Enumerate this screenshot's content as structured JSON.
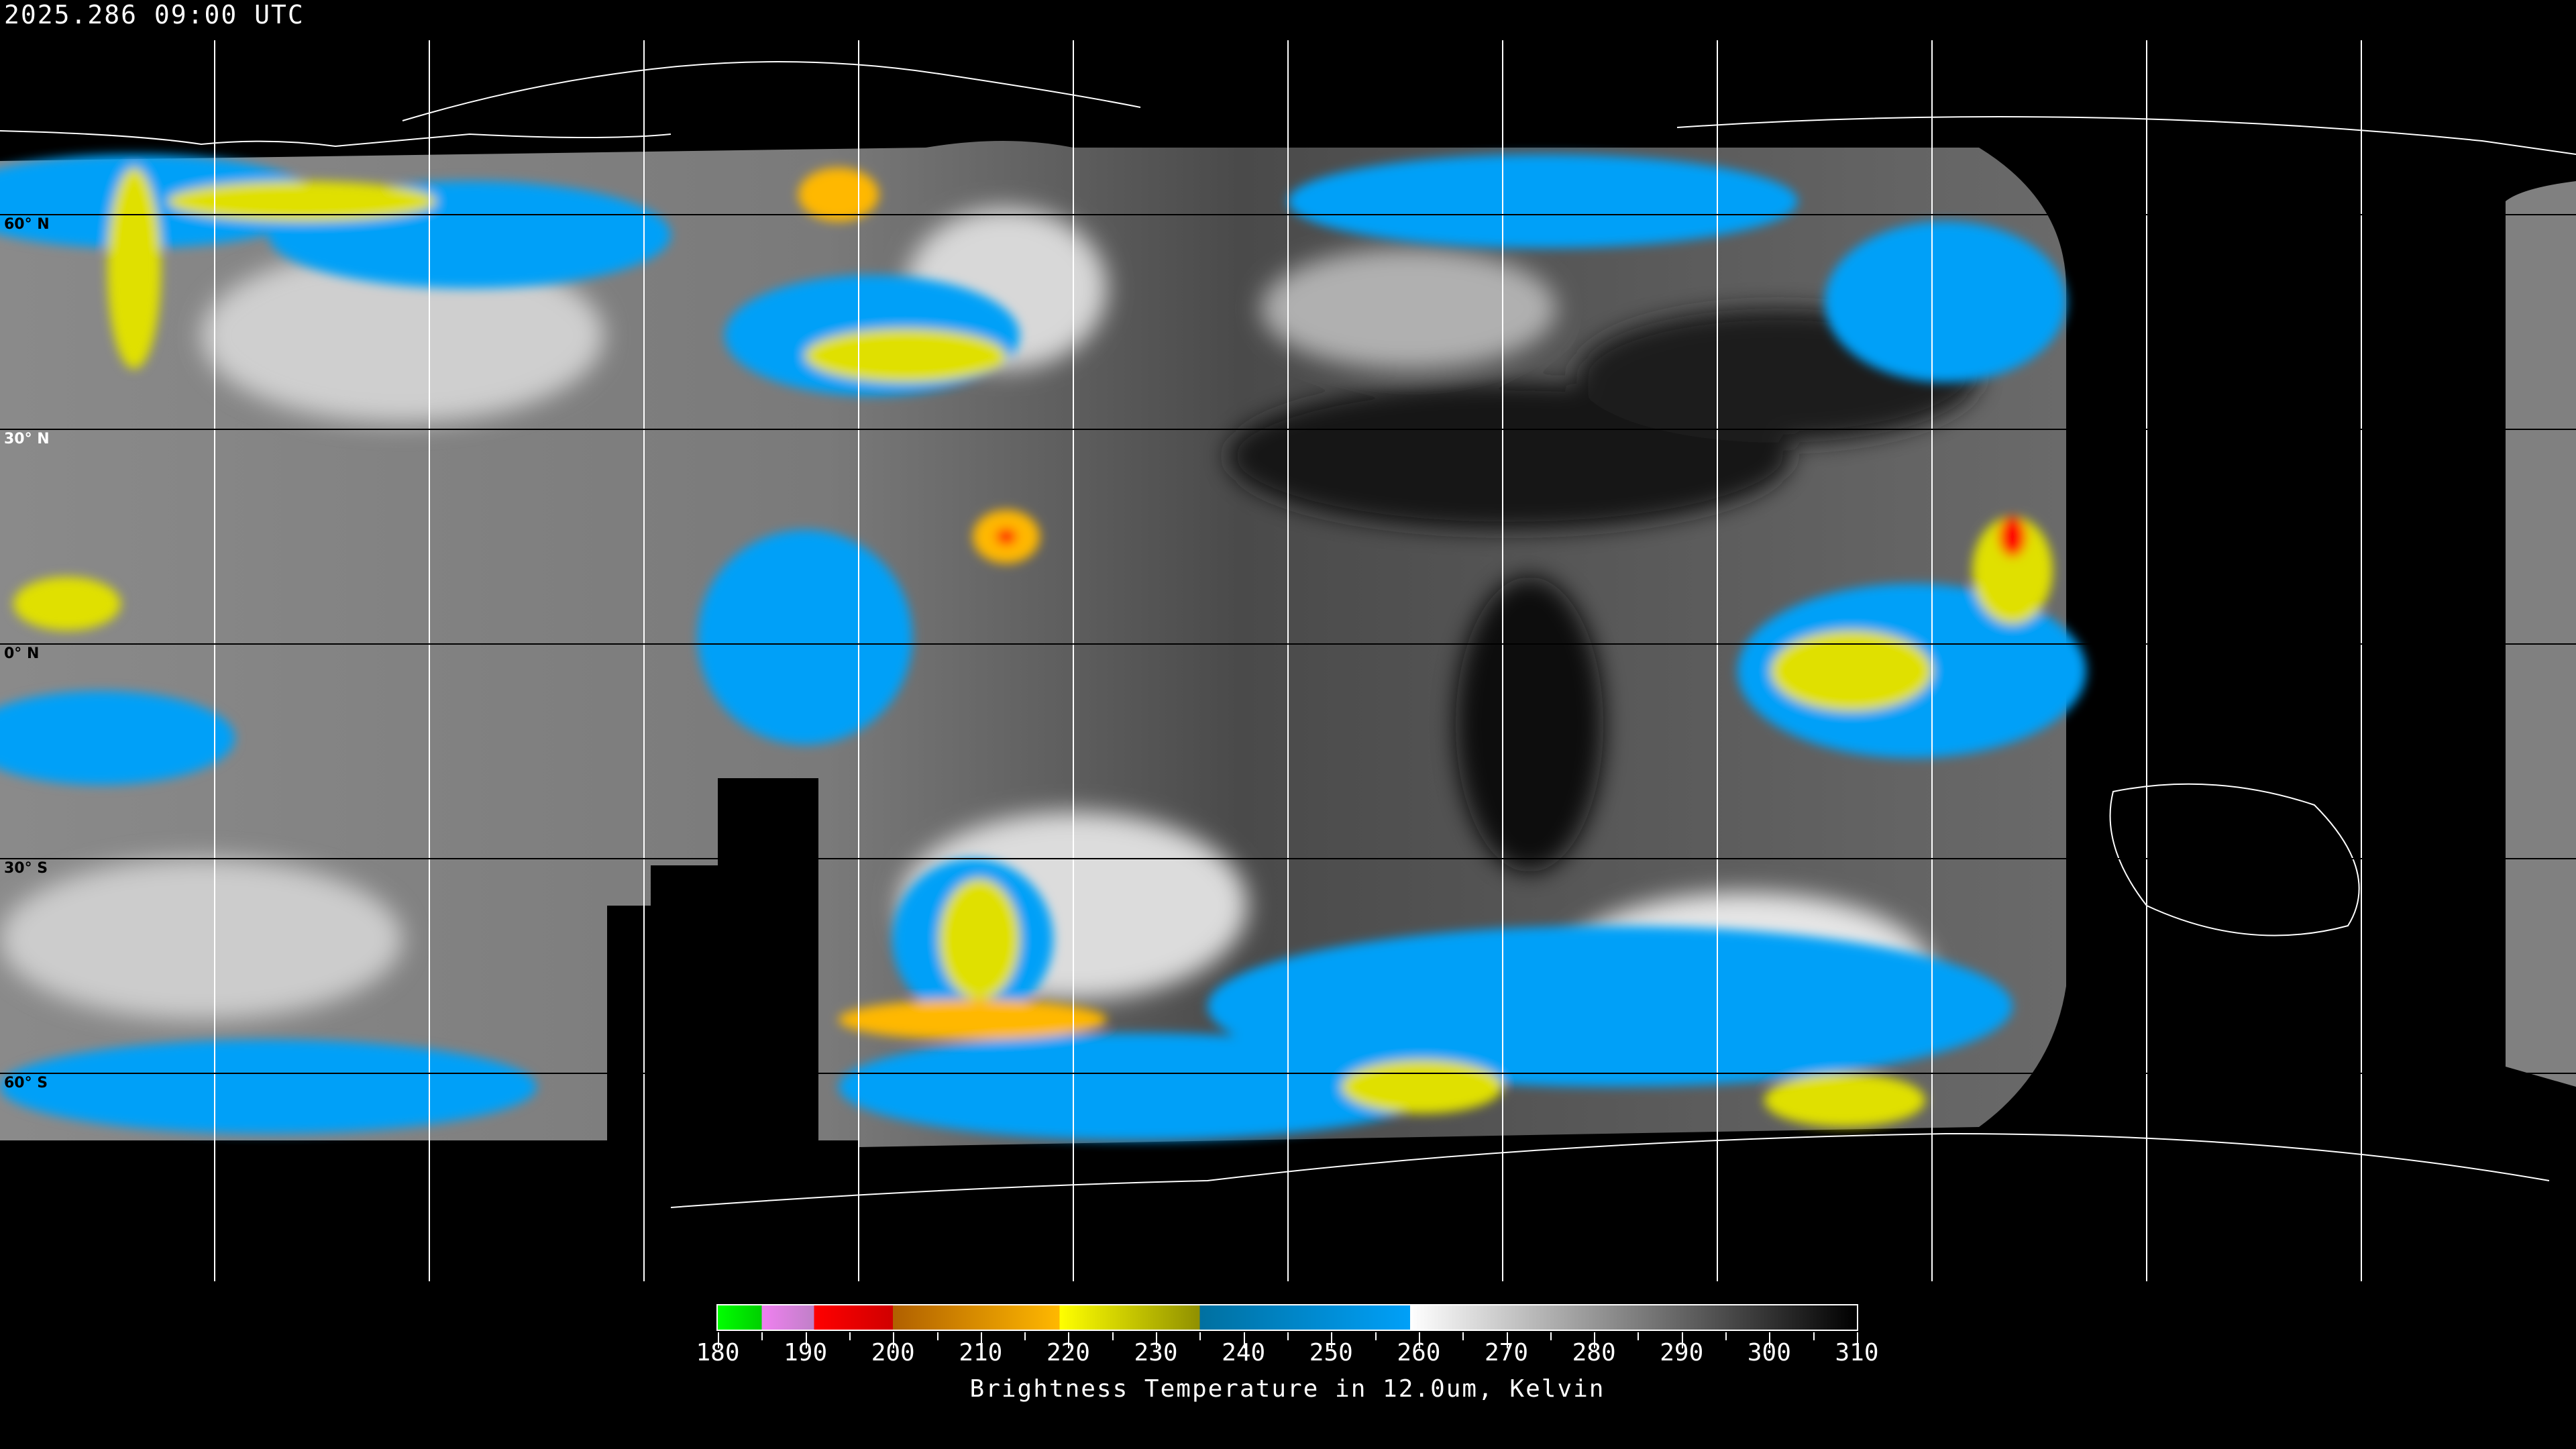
{
  "header": {
    "timestamp": "2025.286 09:00 UTC"
  },
  "map": {
    "projection": "equirectangular",
    "latitude_labels": [
      "60° N",
      "30° N",
      "0° N",
      "30° S",
      "60° S"
    ],
    "grid_spacing_degrees": 30,
    "coastline_color": "#ffffff"
  },
  "colorbar": {
    "title": "Brightness Temperature in 12.0um, Kelvin",
    "min": 180,
    "max": 310,
    "tick_labels": [
      "180",
      "190",
      "200",
      "210",
      "220",
      "230",
      "240",
      "250",
      "260",
      "270",
      "280",
      "290",
      "300",
      "310"
    ],
    "segments": [
      {
        "from": 180,
        "to": 185,
        "start": "#00ff00",
        "end": "#00d000"
      },
      {
        "from": 185,
        "to": 191,
        "start": "#f080f0",
        "end": "#c080c8"
      },
      {
        "from": 191,
        "to": 200,
        "start": "#ff0000",
        "end": "#d00000"
      },
      {
        "from": 200,
        "to": 219,
        "start": "#b06000",
        "end": "#ffb800"
      },
      {
        "from": 219,
        "to": 235,
        "start": "#ffff00",
        "end": "#909000"
      },
      {
        "from": 235,
        "to": 259,
        "start": "#0070a0",
        "end": "#00a0f8"
      },
      {
        "from": 259,
        "to": 310,
        "start": "#ffffff",
        "end": "#000000"
      }
    ]
  }
}
